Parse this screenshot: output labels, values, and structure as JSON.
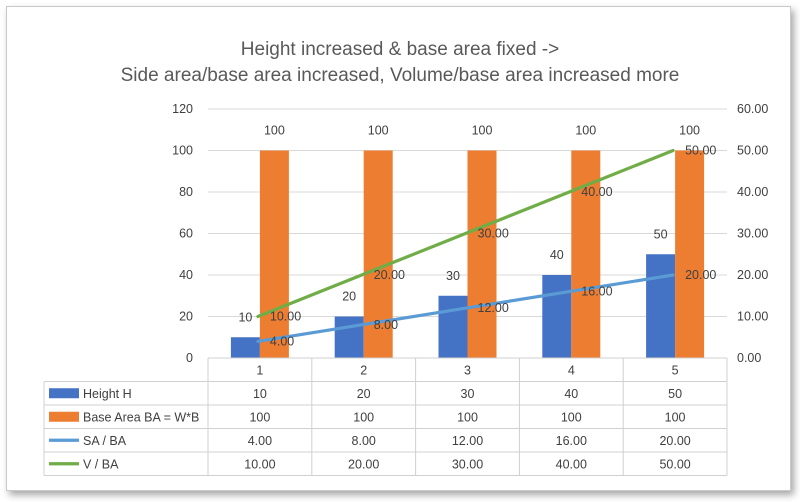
{
  "colors": {
    "height": "#4472C4",
    "base": "#ED7D31",
    "sa": "#5B9BD5",
    "v": "#70AD47",
    "grid": "#d9d9d9",
    "text": "#404040",
    "title": "#595959"
  },
  "chart_data": {
    "type": "bar",
    "title": "Height increased & base area fixed ->",
    "subtitle": "Side area/base area increased, Volume/base area increased more",
    "categories": [
      "1",
      "2",
      "3",
      "4",
      "5"
    ],
    "ylim": [
      0,
      120
    ],
    "yticks": [
      "0",
      "20",
      "40",
      "60",
      "80",
      "100",
      "120"
    ],
    "y2lim": [
      0,
      60
    ],
    "y2ticks": [
      "0.00",
      "10.00",
      "20.00",
      "30.00",
      "40.00",
      "50.00",
      "60.00"
    ],
    "grid": true,
    "legend": "data table below plot",
    "series": [
      {
        "name": "Height H",
        "kind": "bar",
        "axis": "left",
        "color": "#4472C4",
        "values": [
          10,
          20,
          30,
          40,
          50
        ],
        "labels": [
          "10",
          "20",
          "30",
          "40",
          "50"
        ]
      },
      {
        "name": "Base Area BA = W*B",
        "kind": "bar",
        "axis": "left",
        "color": "#ED7D31",
        "values": [
          100,
          100,
          100,
          100,
          100
        ],
        "labels": [
          "100",
          "100",
          "100",
          "100",
          "100"
        ]
      },
      {
        "name": "SA / BA",
        "kind": "line",
        "axis": "right",
        "color": "#5B9BD5",
        "values": [
          4,
          8,
          12,
          16,
          20
        ],
        "labels": [
          "4.00",
          "8.00",
          "12.00",
          "16.00",
          "20.00"
        ]
      },
      {
        "name": "V / BA",
        "kind": "line",
        "axis": "right",
        "color": "#70AD47",
        "values": [
          10,
          20,
          30,
          40,
          50
        ],
        "labels": [
          "10.00",
          "20.00",
          "30.00",
          "40.00",
          "50.00"
        ]
      }
    ]
  }
}
